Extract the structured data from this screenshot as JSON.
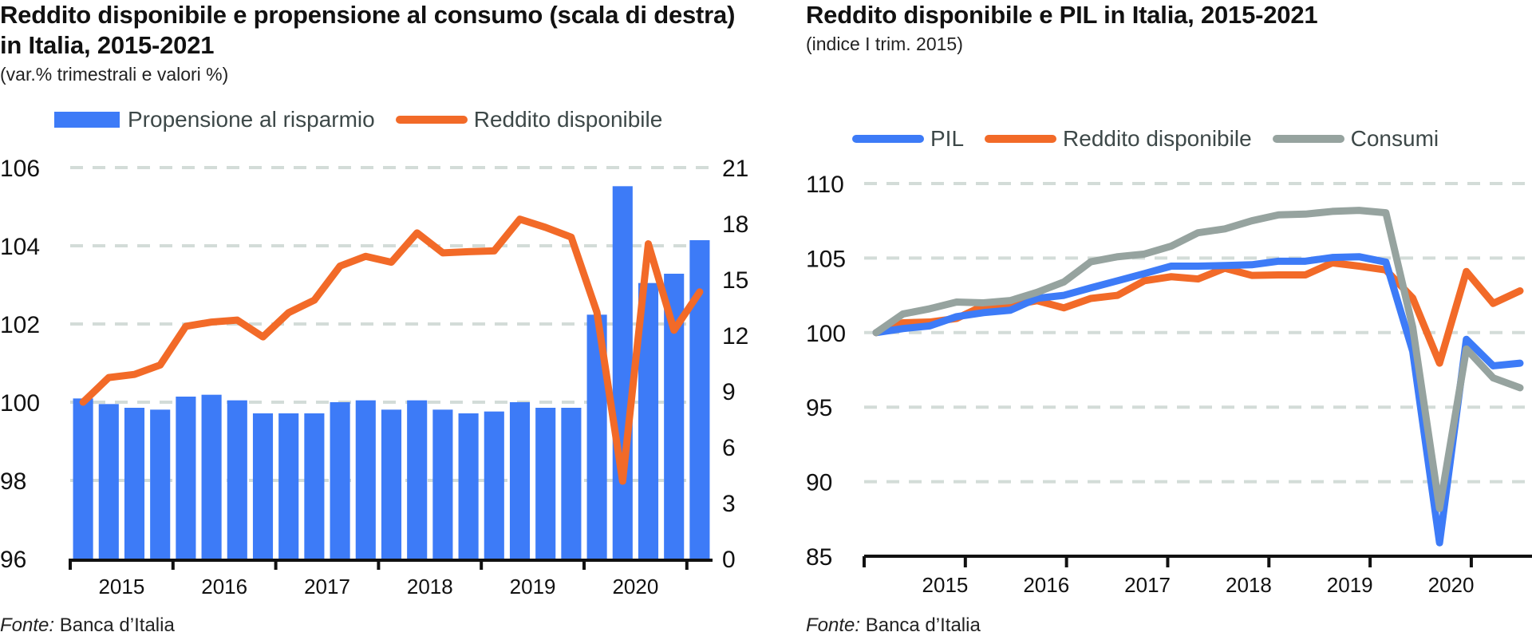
{
  "colors": {
    "blue": "#3d7bf7",
    "orange": "#f26a28",
    "gray": "#96a39f",
    "grid": "#d3dcd8",
    "axis": "#111111",
    "legend_text": "#3d4848"
  },
  "chart_data": [
    {
      "type": "bar",
      "title": "Reddito disponibile e propensione al consumo (scala di destra) in Italia, 2015-2021",
      "subtitle": "(var.% trimestrali e valori %)",
      "source_label": "Fonte:",
      "source_text": " Banca d’Italia",
      "xlabel": "",
      "ylabel": "",
      "legend_position": "top",
      "grid": true,
      "x_tick_labels": [
        "2015",
        "2016",
        "2017",
        "2018",
        "2019",
        "2020"
      ],
      "periods_per_year": 4,
      "categories": [
        "2015Q1",
        "2015Q2",
        "2015Q3",
        "2015Q4",
        "2016Q1",
        "2016Q2",
        "2016Q3",
        "2016Q4",
        "2017Q1",
        "2017Q2",
        "2017Q3",
        "2017Q4",
        "2018Q1",
        "2018Q2",
        "2018Q3",
        "2018Q4",
        "2019Q1",
        "2019Q2",
        "2019Q3",
        "2019Q4",
        "2020Q1",
        "2020Q2",
        "2020Q3",
        "2020Q4",
        "2021Q1"
      ],
      "y_left": {
        "ylim": [
          96,
          106
        ],
        "ticks": [
          96,
          98,
          100,
          102,
          104,
          106
        ]
      },
      "y_right": {
        "ylim": [
          0,
          21
        ],
        "ticks": [
          0,
          3,
          6,
          9,
          12,
          15,
          18,
          21
        ]
      },
      "series": [
        {
          "name": "Propensione al risparmio",
          "kind": "bar",
          "axis": "right",
          "color": "#3d7bf7",
          "values": [
            8.6,
            8.3,
            8.1,
            8.0,
            8.7,
            8.8,
            8.5,
            7.8,
            7.8,
            7.8,
            8.4,
            8.5,
            8.0,
            8.5,
            8.0,
            7.8,
            7.9,
            8.4,
            8.1,
            8.1,
            13.1,
            20.0,
            14.8,
            15.3,
            17.1
          ]
        },
        {
          "name": "Reddito disponibile",
          "kind": "line",
          "axis": "left",
          "color": "#f26a28",
          "values": [
            100.0,
            100.63,
            100.71,
            100.95,
            101.94,
            102.05,
            102.1,
            101.67,
            102.29,
            102.61,
            103.48,
            103.73,
            103.58,
            104.33,
            103.82,
            103.85,
            103.87,
            104.68,
            104.47,
            104.22,
            102.3,
            97.98,
            104.05,
            101.84,
            102.82
          ]
        }
      ]
    },
    {
      "type": "line",
      "title": "Reddito disponibile e PIL in Italia, 2015-2021",
      "subtitle": "(indice I trim. 2015)",
      "source_label": "Fonte:",
      "source_text": " Banca d’Italia",
      "xlabel": "",
      "ylabel": "",
      "legend_position": "top",
      "grid": true,
      "x_tick_labels": [
        "2015",
        "2016",
        "2017",
        "2018",
        "2019",
        "2020"
      ],
      "categories": [
        "2015Q1",
        "2015Q2",
        "2015Q3",
        "2015Q4",
        "2016Q1",
        "2016Q2",
        "2016Q3",
        "2016Q4",
        "2017Q1",
        "2017Q2",
        "2017Q3",
        "2017Q4",
        "2018Q1",
        "2018Q2",
        "2018Q3",
        "2018Q4",
        "2019Q1",
        "2019Q2",
        "2019Q3",
        "2019Q4",
        "2020Q1",
        "2020Q2",
        "2020Q3",
        "2020Q4",
        "2021Q1"
      ],
      "ylim": [
        85,
        110
      ],
      "y_ticks": [
        85,
        90,
        95,
        100,
        105,
        110
      ],
      "series": [
        {
          "name": "PIL",
          "color": "#3d7bf7",
          "values": [
            100.0,
            100.27,
            100.45,
            101.07,
            101.34,
            101.5,
            102.3,
            102.5,
            103.0,
            103.48,
            103.96,
            104.46,
            104.46,
            104.5,
            104.55,
            104.79,
            104.79,
            105.04,
            105.09,
            104.73,
            98.75,
            85.9,
            99.55,
            97.77,
            97.95
          ]
        },
        {
          "name": "Reddito disponibile",
          "color": "#f26a28",
          "values": [
            100.0,
            100.66,
            100.71,
            100.95,
            101.8,
            101.82,
            102.14,
            101.66,
            102.29,
            102.5,
            103.48,
            103.75,
            103.6,
            104.32,
            103.84,
            103.87,
            103.87,
            104.68,
            104.46,
            104.2,
            102.32,
            97.95,
            104.1,
            101.96,
            102.8
          ]
        },
        {
          "name": "Consumi",
          "color": "#96a39f",
          "values": [
            100.0,
            101.25,
            101.6,
            102.05,
            102.0,
            102.15,
            102.7,
            103.4,
            104.75,
            105.09,
            105.27,
            105.8,
            106.7,
            106.96,
            107.5,
            107.9,
            107.95,
            108.13,
            108.2,
            108.04,
            100.36,
            88.2,
            98.9,
            96.96,
            96.3
          ]
        }
      ]
    }
  ]
}
